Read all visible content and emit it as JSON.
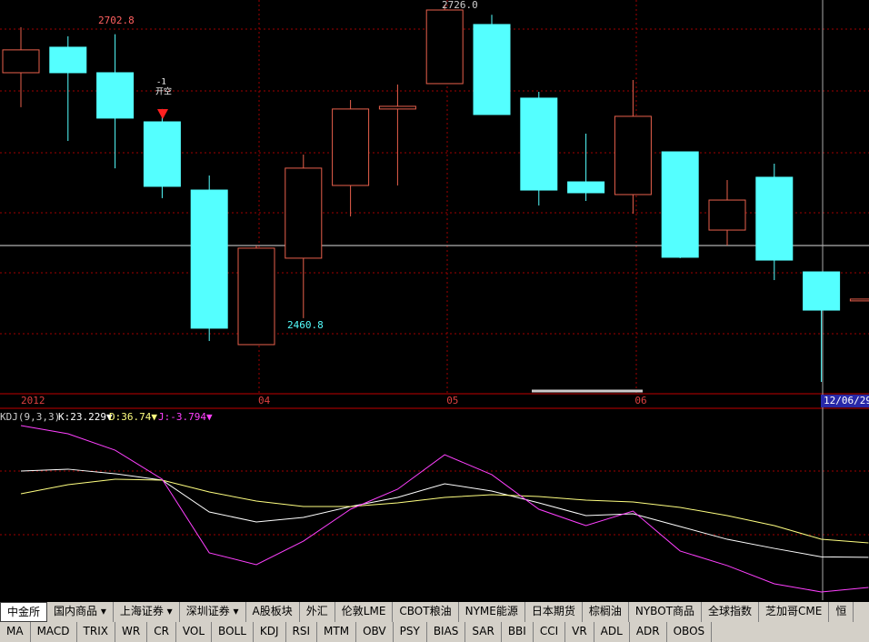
{
  "chart_data": [
    {
      "type": "candlestick",
      "categories": [
        "2012",
        null,
        null,
        null,
        null,
        "04",
        null,
        null,
        null,
        "05",
        null,
        null,
        null,
        "06",
        null,
        null,
        null,
        "12/06/29",
        null
      ],
      "open": [
        2672.8,
        2692.7,
        2672.8,
        2634.5,
        2581.3,
        2460.8,
        2528.2,
        2584.9,
        2644.5,
        2664.3,
        2710.4,
        2653.0,
        2587.7,
        2577.8,
        2611.1,
        2550.1,
        2591.3,
        2517.5,
        2495.6
      ],
      "high": [
        2708.3,
        2701.2,
        2702.8,
        2644.5,
        2592.7,
        2538.1,
        2609.0,
        2651.5,
        2663.6,
        2726.0,
        2718.0,
        2657.9,
        2625.3,
        2667.1,
        2611.1,
        2589.1,
        2601.9,
        2517.5,
        2496.3
      ],
      "low": [
        2645.9,
        2619.6,
        2598.2,
        2575.0,
        2463.6,
        2460.8,
        2481.4,
        2560.8,
        2584.9,
        2664.3,
        2640.2,
        2569.3,
        2572.8,
        2562.9,
        2528.2,
        2538.1,
        2511.1,
        2431.7,
        2495.6
      ],
      "close": [
        2690.6,
        2672.8,
        2637.4,
        2584.2,
        2473.6,
        2536.0,
        2598.4,
        2644.5,
        2646.6,
        2721.7,
        2640.2,
        2581.3,
        2579.2,
        2638.8,
        2528.9,
        2573.5,
        2526.7,
        2487.7,
        2496.3
      ],
      "up_color": "#e8604c",
      "down_color": "#54ffff",
      "ylim": [
        2423.2,
        2729.5
      ],
      "annotations": [
        "2702.8",
        "2726.0",
        "2460.8",
        "-1",
        "开空"
      ]
    },
    {
      "type": "line",
      "header": {
        "title": "KDJ(9,3,3)",
        "k": "K:23.229▼",
        "d": "D:36.74▼",
        "j": "J:-3.794▼"
      },
      "series": [
        {
          "name": "K",
          "color": "#ffffff",
          "values": [
            89.2,
            90.6,
            87.1,
            82.2,
            57.7,
            50.0,
            53.5,
            61.9,
            68.9,
            79.4,
            73.8,
            64.7,
            54.9,
            56.3,
            46.5,
            36.7,
            29.7,
            23.229,
            22.8
          ]
        },
        {
          "name": "D",
          "color": "#ffff80",
          "values": [
            71.7,
            78.7,
            82.9,
            82.2,
            73.1,
            66.1,
            61.9,
            61.9,
            64.7,
            68.9,
            71.0,
            69.6,
            66.8,
            65.4,
            61.2,
            54.9,
            47.2,
            36.74,
            33.9
          ]
        },
        {
          "name": "J",
          "color": "#ff40ff",
          "values": [
            124.1,
            117.8,
            105.2,
            82.9,
            26.3,
            17.2,
            35.3,
            59.8,
            75.2,
            101.7,
            86.4,
            59.8,
            47.2,
            58.4,
            27.7,
            16.5,
            2.5,
            -3.794,
            -0.3
          ]
        }
      ],
      "ylim": [
        -10.1,
        131.1
      ]
    }
  ],
  "tabs": {
    "markets": [
      "中金所",
      "国内商品 ▾",
      "上海证券 ▾",
      "深圳证券 ▾",
      "A股板块",
      "外汇",
      "伦敦LME",
      "CBOT粮油",
      "NYME能源",
      "日本期货",
      "棕榈油",
      "NYBOT商品",
      "全球指数",
      "芝加哥CME",
      "恒"
    ],
    "indicators": [
      "MA",
      "MACD",
      "TRIX",
      "WR",
      "CR",
      "VOL",
      "BOLL",
      "KDJ",
      "RSI",
      "MTM",
      "OBV",
      "PSY",
      "BIAS",
      "SAR",
      "BBI",
      "CCI",
      "VR",
      "ADL",
      "ADR",
      "OBOS"
    ]
  }
}
